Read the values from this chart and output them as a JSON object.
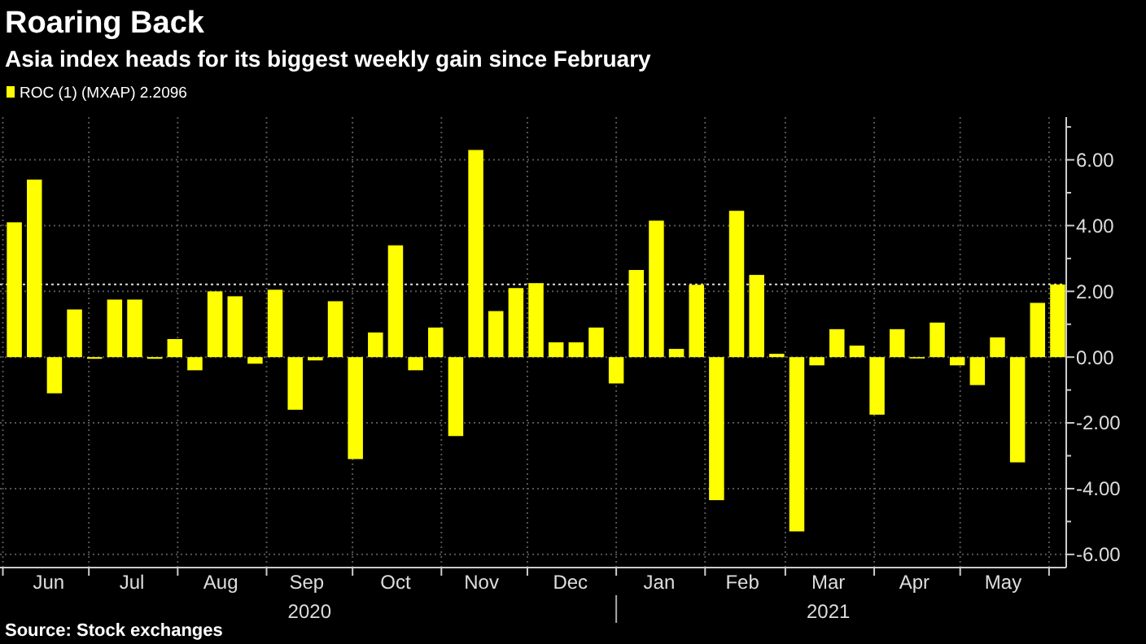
{
  "chart_data": {
    "type": "bar",
    "title": "Roaring Back",
    "subtitle": "Asia index heads for its biggest weekly gain since February",
    "x": [
      "2020-06-05",
      "2020-06-12",
      "2020-06-19",
      "2020-06-26",
      "2020-07-03",
      "2020-07-10",
      "2020-07-17",
      "2020-07-24",
      "2020-07-31",
      "2020-08-07",
      "2020-08-14",
      "2020-08-21",
      "2020-08-28",
      "2020-09-04",
      "2020-09-11",
      "2020-09-18",
      "2020-09-25",
      "2020-10-02",
      "2020-10-09",
      "2020-10-16",
      "2020-10-23",
      "2020-10-30",
      "2020-11-06",
      "2020-11-13",
      "2020-11-20",
      "2020-11-27",
      "2020-12-04",
      "2020-12-11",
      "2020-12-18",
      "2020-12-25",
      "2021-01-01",
      "2021-01-08",
      "2021-01-15",
      "2021-01-22",
      "2021-01-29",
      "2021-02-05",
      "2021-02-12",
      "2021-02-19",
      "2021-02-26",
      "2021-03-05",
      "2021-03-12",
      "2021-03-19",
      "2021-03-26",
      "2021-04-02",
      "2021-04-09",
      "2021-04-16",
      "2021-04-23",
      "2021-04-30",
      "2021-05-07",
      "2021-05-14",
      "2021-05-21",
      "2021-05-28",
      "2021-06-04"
    ],
    "series": [
      {
        "name": "ROC (1) (MXAP) 2.2096",
        "color": "#ffff00",
        "values": [
          4.1,
          5.4,
          -1.1,
          1.45,
          -0.05,
          1.75,
          1.75,
          -0.05,
          0.55,
          -0.4,
          2.0,
          1.85,
          -0.2,
          2.05,
          -1.6,
          -0.1,
          1.7,
          -3.1,
          0.75,
          3.4,
          -0.4,
          0.9,
          -2.4,
          6.3,
          1.4,
          2.1,
          2.25,
          0.45,
          0.45,
          0.9,
          -0.8,
          2.65,
          4.15,
          0.25,
          2.2,
          -4.35,
          4.45,
          2.5,
          0.1,
          -5.3,
          -0.25,
          0.85,
          0.35,
          -1.75,
          0.85,
          -0.02,
          1.05,
          -0.25,
          -0.85,
          0.6,
          -3.2,
          1.65,
          2.2096
        ]
      }
    ],
    "xlim": [
      "2020-05-31",
      "2021-06-07"
    ],
    "xticks": [
      {
        "value": "2020-06-01",
        "label": null
      },
      {
        "value": "2020-06-17",
        "label": "Jun"
      },
      {
        "value": "2020-07-01",
        "label": null
      },
      {
        "value": "2020-07-16",
        "label": "Jul"
      },
      {
        "value": "2020-08-01",
        "label": null
      },
      {
        "value": "2020-08-16",
        "label": "Aug"
      },
      {
        "value": "2020-09-01",
        "label": null
      },
      {
        "value": "2020-09-15",
        "label": "Sep"
      },
      {
        "value": "2020-10-01",
        "label": null
      },
      {
        "value": "2020-10-16",
        "label": "Oct"
      },
      {
        "value": "2020-11-01",
        "label": null
      },
      {
        "value": "2020-11-15",
        "label": "Nov"
      },
      {
        "value": "2020-12-01",
        "label": null
      },
      {
        "value": "2020-12-16",
        "label": "Dec"
      },
      {
        "value": "2021-01-01",
        "label": null
      },
      {
        "value": "2021-01-16",
        "label": "Jan"
      },
      {
        "value": "2021-02-01",
        "label": null
      },
      {
        "value": "2021-02-14",
        "label": "Feb"
      },
      {
        "value": "2021-03-01",
        "label": null
      },
      {
        "value": "2021-03-16",
        "label": "Mar"
      },
      {
        "value": "2021-04-01",
        "label": null
      },
      {
        "value": "2021-04-15",
        "label": "Apr"
      },
      {
        "value": "2021-05-01",
        "label": null
      },
      {
        "value": "2021-05-16",
        "label": "May"
      },
      {
        "value": "2021-06-01",
        "label": null
      }
    ],
    "x2lim": [
      "2020-05-31",
      "2021-06-07"
    ],
    "x2ticks": [
      {
        "value": "2020-09-16",
        "label": "2020"
      },
      {
        "value": "2021-01-01",
        "label": null
      },
      {
        "value": "2021-03-16",
        "label": "2021"
      }
    ],
    "ylim": [
      -6.4,
      7.3
    ],
    "yticks": [
      {
        "value": -6,
        "label": "-6.00"
      },
      {
        "value": -5,
        "label": null
      },
      {
        "value": -4,
        "label": "-4.00"
      },
      {
        "value": -3,
        "label": null
      },
      {
        "value": -2,
        "label": "-2.00"
      },
      {
        "value": -1,
        "label": null
      },
      {
        "value": 0,
        "label": "0.00"
      },
      {
        "value": 1,
        "label": null
      },
      {
        "value": 2,
        "label": "2.00"
      },
      {
        "value": 3,
        "label": null
      },
      {
        "value": 4,
        "label": "4.00"
      },
      {
        "value": 5,
        "label": null
      },
      {
        "value": 6,
        "label": "6.00"
      },
      {
        "value": 7,
        "label": null
      }
    ],
    "ref_lines": [
      {
        "axis": "y",
        "value": 2.2096,
        "label": null,
        "color": "#dddddd",
        "line_style": "dotted"
      }
    ],
    "grid": true,
    "legend": "top left",
    "annotations": [
      "Source: Stock exchanges"
    ]
  }
}
